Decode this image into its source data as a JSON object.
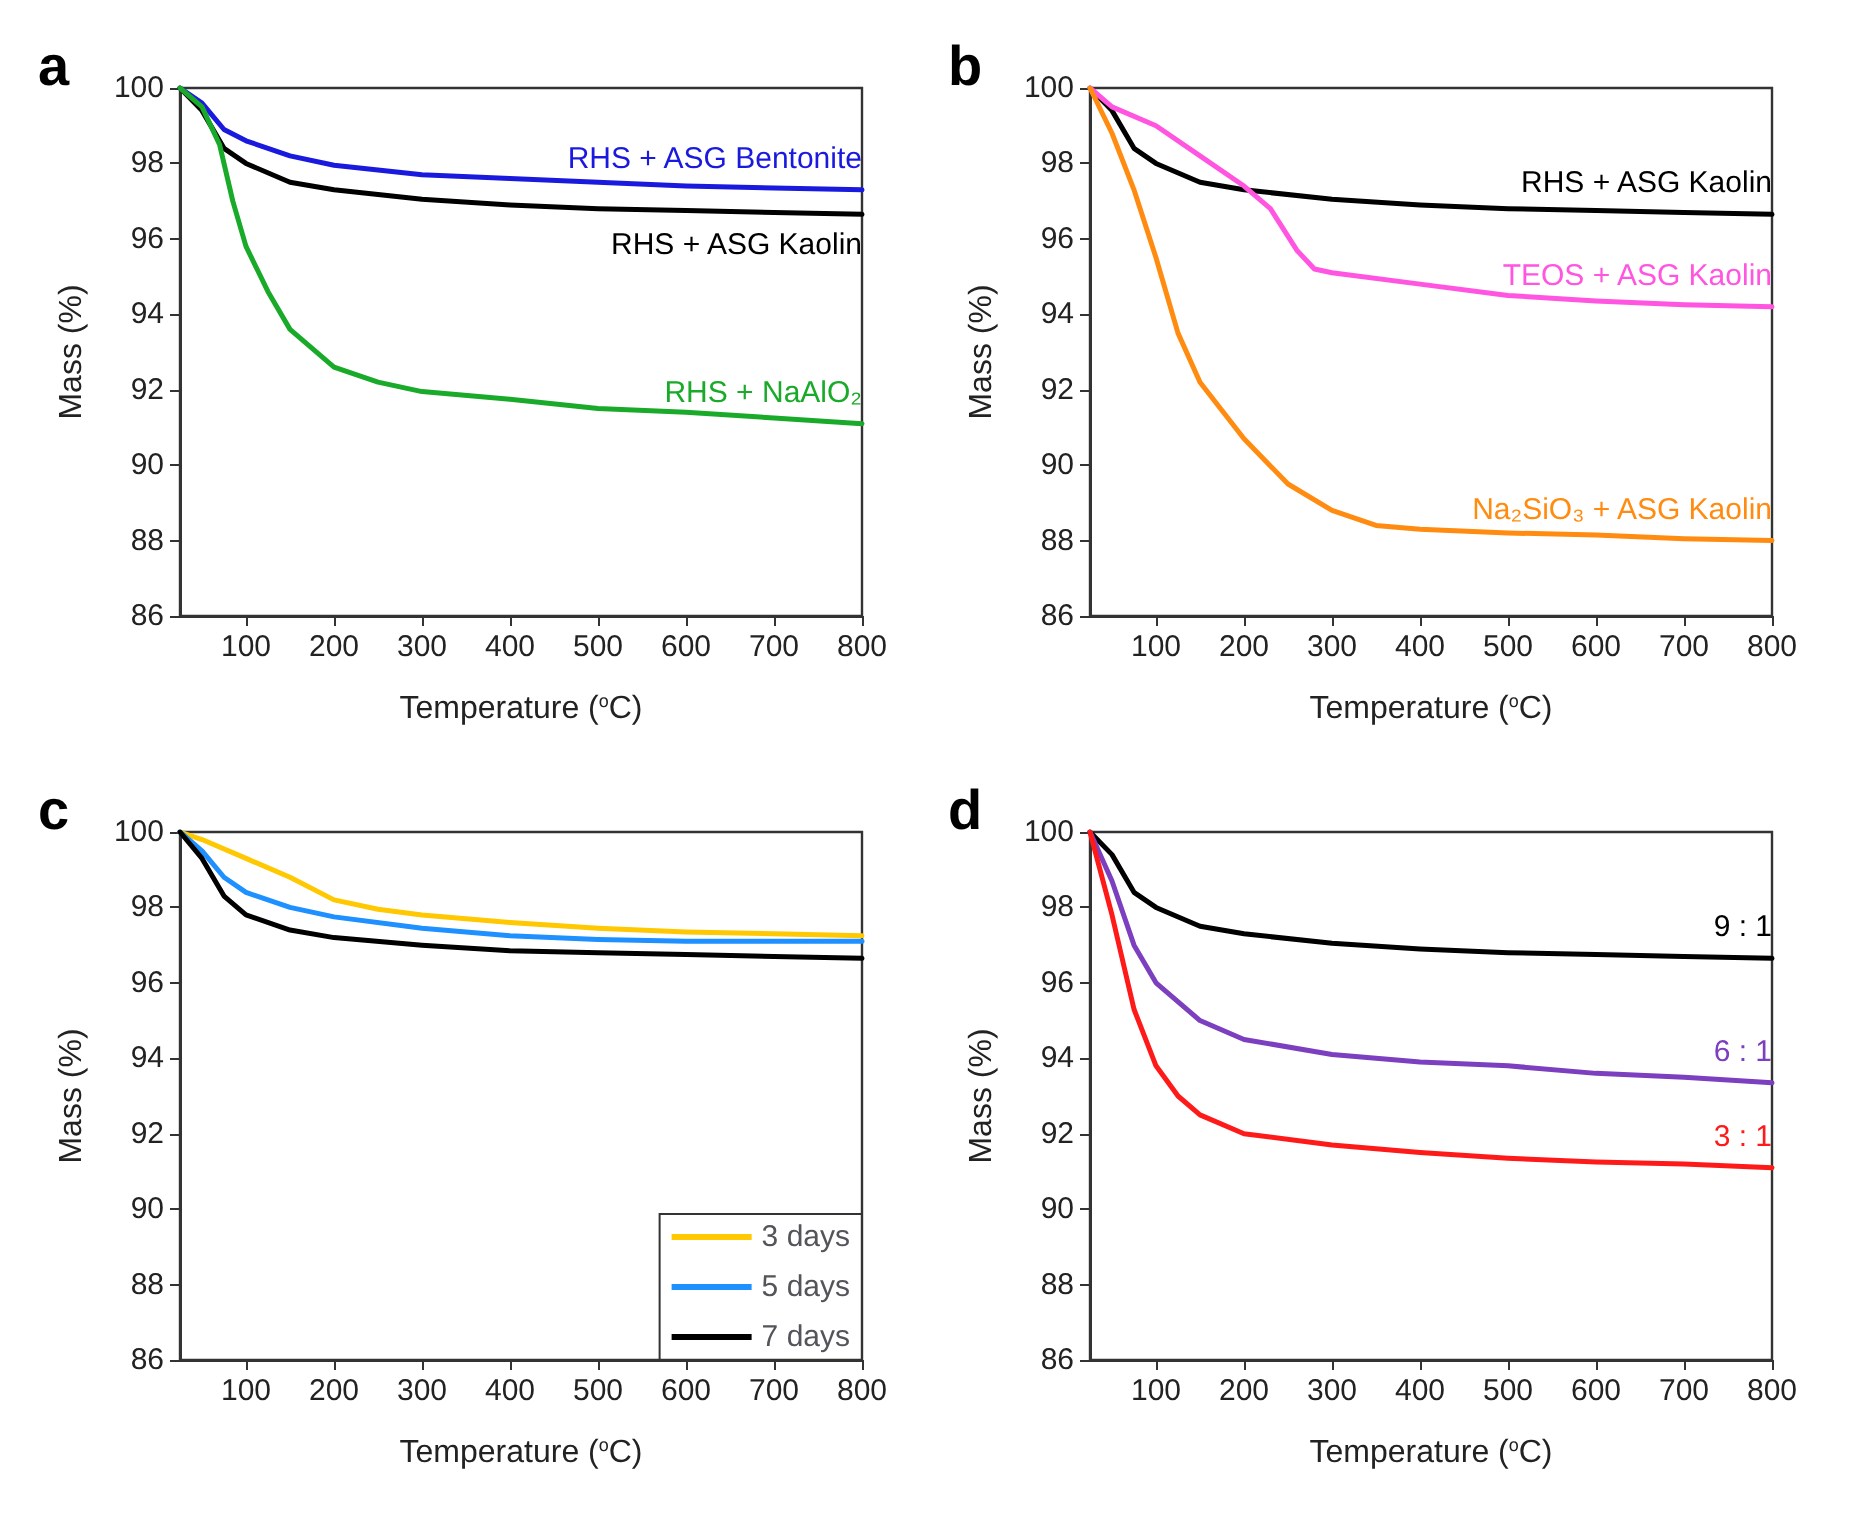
{
  "chart_data": [
    {
      "type": "line",
      "title": "a",
      "xlabel": "Temperature ($^{o}$C)",
      "ylabel": "Mass (%)",
      "xlim": [
        25,
        800
      ],
      "xticks": [
        100,
        200,
        300,
        400,
        500,
        600,
        700,
        800
      ],
      "ylim": [
        86,
        100
      ],
      "yticks": [
        86,
        88,
        90,
        92,
        94,
        96,
        98,
        100
      ],
      "grid": false,
      "legend": false,
      "marker": "none",
      "line_style": "solid",
      "series": [
        {
          "name": "RHS + ASG Bentonite",
          "color": "#1a1adf",
          "x": [
            25,
            50,
            75,
            100,
            150,
            200,
            300,
            400,
            500,
            600,
            700,
            800
          ],
          "values": [
            100,
            99.6,
            98.9,
            98.6,
            98.2,
            97.95,
            97.7,
            97.6,
            97.5,
            97.4,
            97.35,
            97.3
          ]
        },
        {
          "name": "RHS + ASG Kaolin",
          "color": "#000000",
          "x": [
            25,
            50,
            75,
            100,
            150,
            200,
            300,
            400,
            500,
            600,
            700,
            800
          ],
          "values": [
            100,
            99.4,
            98.4,
            98.0,
            97.5,
            97.3,
            97.05,
            96.9,
            96.8,
            96.75,
            96.7,
            96.65
          ]
        },
        {
          "name": "RHS + NaAlO₂",
          "color": "#1aaa2a",
          "x": [
            25,
            50,
            70,
            85,
            100,
            125,
            150,
            200,
            250,
            300,
            400,
            500,
            600,
            700,
            800
          ],
          "values": [
            100,
            99.5,
            98.5,
            97.0,
            95.8,
            94.6,
            93.6,
            92.6,
            92.2,
            91.95,
            91.75,
            91.5,
            91.4,
            91.25,
            91.1
          ]
        }
      ]
    },
    {
      "type": "line",
      "title": "b",
      "xlabel": "Temperature ($^{o}$C)",
      "ylabel": "Mass (%)",
      "xlim": [
        25,
        800
      ],
      "xticks": [
        100,
        200,
        300,
        400,
        500,
        600,
        700,
        800
      ],
      "ylim": [
        86,
        100
      ],
      "yticks": [
        86,
        88,
        90,
        92,
        94,
        96,
        98,
        100
      ],
      "grid": false,
      "legend": false,
      "marker": "none",
      "line_style": "solid",
      "series": [
        {
          "name": "RHS + ASG Kaolin",
          "color": "#000000",
          "x": [
            25,
            50,
            75,
            100,
            150,
            200,
            300,
            400,
            500,
            600,
            700,
            800
          ],
          "values": [
            100,
            99.4,
            98.4,
            98.0,
            97.5,
            97.3,
            97.05,
            96.9,
            96.8,
            96.75,
            96.7,
            96.65
          ]
        },
        {
          "name": "TEOS + ASG Kaolin",
          "color": "#ff55e0",
          "x": [
            25,
            50,
            100,
            150,
            200,
            230,
            260,
            280,
            300,
            400,
            500,
            600,
            700,
            800
          ],
          "values": [
            100,
            99.5,
            99.0,
            98.2,
            97.4,
            96.8,
            95.7,
            95.2,
            95.1,
            94.8,
            94.5,
            94.35,
            94.25,
            94.2
          ]
        },
        {
          "name": "Na₂SiO₃ + ASG Kaolin",
          "color": "#ff8c10",
          "x": [
            25,
            50,
            75,
            100,
            125,
            150,
            200,
            250,
            300,
            350,
            400,
            500,
            600,
            700,
            800
          ],
          "values": [
            100,
            98.8,
            97.3,
            95.5,
            93.5,
            92.2,
            90.7,
            89.5,
            88.8,
            88.4,
            88.3,
            88.2,
            88.15,
            88.05,
            88.0
          ]
        }
      ]
    },
    {
      "type": "line",
      "title": "c",
      "xlabel": "Temperature ($^{o}$C)",
      "ylabel": "Mass (%)",
      "xlim": [
        25,
        800
      ],
      "xticks": [
        100,
        200,
        300,
        400,
        500,
        600,
        700,
        800
      ],
      "ylim": [
        86,
        100
      ],
      "yticks": [
        86,
        88,
        90,
        92,
        94,
        96,
        98,
        100
      ],
      "grid": false,
      "legend": "bottom right",
      "marker": "none",
      "line_style": "solid",
      "series": [
        {
          "name": "3 days",
          "color": "#ffc800",
          "x": [
            25,
            50,
            100,
            150,
            200,
            250,
            300,
            400,
            500,
            600,
            700,
            800
          ],
          "values": [
            100,
            99.8,
            99.3,
            98.8,
            98.2,
            97.95,
            97.8,
            97.6,
            97.45,
            97.35,
            97.3,
            97.25
          ]
        },
        {
          "name": "5 days",
          "color": "#1e90ff",
          "x": [
            25,
            50,
            75,
            100,
            150,
            200,
            300,
            400,
            500,
            600,
            700,
            800
          ],
          "values": [
            100,
            99.5,
            98.8,
            98.4,
            98.0,
            97.75,
            97.45,
            97.25,
            97.15,
            97.1,
            97.1,
            97.1
          ]
        },
        {
          "name": "7 days",
          "color": "#000000",
          "x": [
            25,
            50,
            75,
            100,
            150,
            200,
            300,
            400,
            500,
            600,
            700,
            800
          ],
          "values": [
            100,
            99.3,
            98.3,
            97.8,
            97.4,
            97.2,
            97.0,
            96.85,
            96.8,
            96.75,
            96.7,
            96.65
          ]
        }
      ]
    },
    {
      "type": "line",
      "title": "d",
      "xlabel": "Temperature ($^{o}$C)",
      "ylabel": "Mass (%)",
      "xlim": [
        25,
        800
      ],
      "xticks": [
        100,
        200,
        300,
        400,
        500,
        600,
        700,
        800
      ],
      "ylim": [
        86,
        100
      ],
      "yticks": [
        86,
        88,
        90,
        92,
        94,
        96,
        98,
        100
      ],
      "grid": false,
      "legend": false,
      "marker": "none",
      "line_style": "solid",
      "series": [
        {
          "name": "9 : 1",
          "color": "#000000",
          "x": [
            25,
            50,
            75,
            100,
            150,
            200,
            300,
            400,
            500,
            600,
            700,
            800
          ],
          "values": [
            100,
            99.4,
            98.4,
            98.0,
            97.5,
            97.3,
            97.05,
            96.9,
            96.8,
            96.75,
            96.7,
            96.65
          ]
        },
        {
          "name": "6 : 1",
          "color": "#7b3fbf",
          "x": [
            25,
            50,
            75,
            100,
            150,
            200,
            300,
            400,
            500,
            600,
            700,
            800
          ],
          "values": [
            100,
            98.7,
            97.0,
            96.0,
            95.0,
            94.5,
            94.1,
            93.9,
            93.8,
            93.6,
            93.5,
            93.35
          ]
        },
        {
          "name": "3 : 1",
          "color": "#ff1a1a",
          "x": [
            25,
            50,
            75,
            100,
            125,
            150,
            200,
            300,
            400,
            500,
            600,
            700,
            800
          ],
          "values": [
            100,
            97.8,
            95.3,
            93.8,
            93.0,
            92.5,
            92.0,
            91.7,
            91.5,
            91.35,
            91.25,
            91.2,
            91.1
          ]
        }
      ]
    }
  ]
}
